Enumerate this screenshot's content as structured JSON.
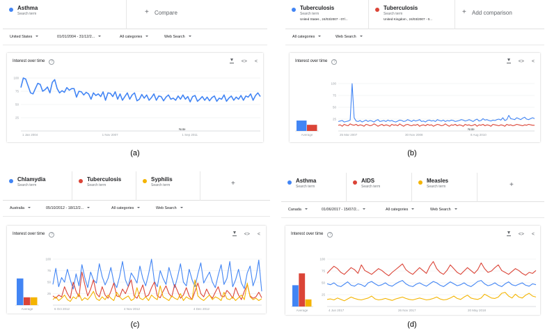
{
  "colors": {
    "blue": "#4285f4",
    "red": "#db4437",
    "yellow": "#f4b400",
    "grid": "#e8eaed",
    "axis": "#9aa0a6",
    "panel_border": "#e0e0e0"
  },
  "labels": {
    "search_term": "Search term",
    "compare": "Compare",
    "add_comparison": "Add comparison",
    "all_categories": "All categories",
    "web_search": "Web Search",
    "interest_over_time": "Interest over time",
    "average": "Average",
    "note": "Note",
    "help_glyph": "?",
    "plus_glyph": "+"
  },
  "icons": [
    "download-icon",
    "embed-icon",
    "share-icon",
    "help-icon",
    "dropdown-caret-icon",
    "plus-icon"
  ],
  "panels": [
    {
      "caption": "(a)",
      "terms": [
        {
          "name": "Asthma",
          "color": "#4285f4",
          "detail": ""
        }
      ],
      "add_label_key": "compare",
      "filters": {
        "region": "United States",
        "date": "01/01/2004 - 31/12/2..."
      }
    },
    {
      "caption": "(b)",
      "terms": [
        {
          "name": "Tuberculosis",
          "color": "#4285f4",
          "detail": "United States , 24/03/2007 - 07/..."
        },
        {
          "name": "Tuberculosis",
          "color": "#db4437",
          "detail": "United Kingdom , 24/03/2007 - 0..."
        }
      ],
      "add_label_key": "add_comparison",
      "filters": {
        "region": "",
        "date": ""
      }
    },
    {
      "caption": "(c)",
      "terms": [
        {
          "name": "Chlamydia",
          "color": "#4285f4",
          "detail": ""
        },
        {
          "name": "Tuberculosis",
          "color": "#db4437",
          "detail": ""
        },
        {
          "name": "Syphilis",
          "color": "#f4b400",
          "detail": ""
        }
      ],
      "add_label_key": "",
      "filters": {
        "region": "Australia",
        "date": "05/10/2012 - 18/12/2..."
      }
    },
    {
      "caption": "(d)",
      "terms": [
        {
          "name": "Asthma",
          "color": "#4285f4",
          "detail": ""
        },
        {
          "name": "AIDS",
          "color": "#db4437",
          "detail": ""
        },
        {
          "name": "Measles",
          "color": "#f4b400",
          "detail": ""
        }
      ],
      "add_label_key": "",
      "filters": {
        "region": "Canada",
        "date": "01/06/2017 - 15/07/2..."
      }
    }
  ],
  "chart_data": [
    {
      "type": "line",
      "ylim": [
        0,
        100
      ],
      "yticks": [
        "100",
        "75",
        "50",
        "25"
      ],
      "x_ticks": [
        "1 Jan 2004",
        "1 Nov 2007",
        "1 Sep 2011"
      ],
      "has_average": false,
      "annotation": "Note",
      "series": [
        {
          "color": "#4285f4",
          "values": [
            82,
            100,
            98,
            85,
            72,
            70,
            80,
            90,
            88,
            75,
            78,
            83,
            72,
            92,
            97,
            80,
            72,
            76,
            73,
            82,
            77,
            80,
            80,
            64,
            75,
            74,
            68,
            73,
            70,
            60,
            72,
            67,
            70,
            65,
            74,
            58,
            72,
            71,
            65,
            74,
            60,
            70,
            58,
            65,
            72,
            60,
            68,
            72,
            57,
            60,
            69,
            62,
            68,
            58,
            63,
            70,
            58,
            66,
            65,
            57,
            64,
            68,
            60,
            62,
            58,
            66,
            60,
            68,
            60,
            65,
            55,
            65,
            67,
            56,
            60,
            65,
            58,
            64,
            57,
            63,
            66,
            56,
            62,
            60,
            68,
            56,
            62,
            66,
            58,
            64,
            60,
            67,
            58,
            66,
            64,
            70,
            58,
            67,
            72,
            65
          ]
        }
      ]
    },
    {
      "type": "line",
      "ylim": [
        0,
        100
      ],
      "yticks": [
        "100",
        "75",
        "50",
        "25"
      ],
      "x_ticks": [
        "25 Mar 2007",
        "30 Nov 2008",
        "8 Aug 2010"
      ],
      "has_average": true,
      "averages": [
        22,
        13
      ],
      "annotation": "Note",
      "series": [
        {
          "color": "#4285f4",
          "values": [
            20,
            21,
            22,
            19,
            20,
            21,
            23,
            100,
            28,
            21,
            20,
            22,
            19,
            21,
            23,
            20,
            22,
            21,
            19,
            22,
            24,
            20,
            21,
            22,
            20,
            23,
            21,
            22,
            20,
            19,
            21,
            23,
            22,
            20,
            21,
            24,
            22,
            20,
            23,
            21,
            22,
            24,
            20,
            21,
            19,
            22,
            23,
            21,
            22,
            20,
            24,
            22,
            21,
            23,
            20,
            22,
            21,
            23,
            22,
            20,
            21,
            22,
            24,
            23,
            21,
            22,
            24,
            22,
            20,
            23,
            25,
            21,
            22,
            26,
            23,
            24,
            22,
            21,
            23,
            22,
            24,
            25,
            23,
            28,
            22,
            24,
            33,
            26,
            25,
            24,
            28,
            26,
            24,
            27,
            29,
            25,
            24,
            26,
            28,
            26
          ]
        },
        {
          "color": "#db4437",
          "values": [
            12,
            13,
            10,
            14,
            12,
            11,
            15,
            13,
            12,
            14,
            11,
            13,
            12,
            10,
            14,
            13,
            11,
            12,
            15,
            13,
            10,
            12,
            14,
            11,
            13,
            12,
            10,
            14,
            12,
            13,
            11,
            15,
            12,
            10,
            13,
            14,
            12,
            11,
            13,
            12,
            14,
            10,
            12,
            13,
            11,
            14,
            12,
            13,
            10,
            12,
            14,
            13,
            11,
            12,
            15,
            12,
            10,
            13,
            12,
            14,
            11,
            13,
            12,
            10,
            14,
            12,
            13,
            11,
            12,
            14,
            10,
            13,
            12,
            14,
            11,
            13,
            12,
            10,
            14,
            13,
            12,
            11,
            13,
            12,
            10,
            14,
            12,
            13,
            11,
            12,
            14,
            13,
            12,
            11,
            13,
            12,
            14,
            13,
            12,
            12
          ]
        }
      ]
    },
    {
      "type": "line",
      "ylim": [
        0,
        100
      ],
      "yticks": [
        "100",
        "75",
        "50",
        "25"
      ],
      "x_ticks": [
        "6 Oct 2012",
        "4 Nov 2012",
        "4 Dec 2012"
      ],
      "has_average": true,
      "averages": [
        58,
        17,
        17
      ],
      "annotation": "",
      "series": [
        {
          "color": "#4285f4",
          "values": [
            45,
            80,
            40,
            60,
            50,
            78,
            55,
            35,
            68,
            42,
            88,
            60,
            38,
            72,
            55,
            48,
            90,
            62,
            44,
            58,
            82,
            50,
            38,
            62,
            95,
            55,
            40,
            70,
            60,
            48,
            85,
            58,
            42,
            68,
            100,
            52,
            40,
            75,
            58,
            45,
            82,
            60,
            38,
            62,
            90,
            50,
            42,
            78,
            55,
            40,
            68,
            92,
            48,
            60,
            72,
            50,
            38,
            65,
            88,
            45,
            58,
            95,
            40,
            55,
            78,
            48,
            36,
            70,
            85,
            42,
            60,
            98,
            30
          ]
        },
        {
          "color": "#db4437",
          "values": [
            20,
            15,
            22,
            18,
            40,
            25,
            15,
            50,
            30,
            18,
            72,
            45,
            20,
            35,
            55,
            25,
            18,
            40,
            22,
            15,
            30,
            48,
            20,
            18,
            35,
            25,
            40,
            55,
            20,
            15,
            28,
            44,
            18,
            22,
            38,
            50,
            20,
            16,
            30,
            42,
            25,
            18,
            45,
            30,
            15,
            22,
            38,
            20,
            12,
            30,
            48,
            25,
            18,
            35,
            22,
            15,
            28,
            40,
            20,
            18,
            32,
            25,
            15,
            38,
            22,
            12,
            30,
            45,
            20,
            15,
            18,
            28,
            16
          ]
        },
        {
          "color": "#f4b400",
          "values": [
            12,
            18,
            10,
            15,
            22,
            12,
            8,
            18,
            14,
            25,
            10,
            16,
            12,
            20,
            30,
            14,
            10,
            18,
            12,
            22,
            15,
            10,
            28,
            18,
            12,
            16,
            20,
            10,
            14,
            38,
            15,
            12,
            18,
            10,
            22,
            16,
            12,
            42,
            18,
            14,
            10,
            20,
            15,
            12,
            25,
            10,
            18,
            14,
            12,
            55,
            20,
            14,
            10,
            16,
            22,
            12,
            18,
            15,
            10,
            28,
            14,
            12,
            18,
            10,
            16,
            22,
            12,
            48,
            18,
            12,
            15,
            10,
            14
          ]
        }
      ]
    },
    {
      "type": "line",
      "ylim": [
        0,
        100
      ],
      "yticks": [
        "100",
        "75",
        "50",
        "25"
      ],
      "x_ticks": [
        "4 Jun 2017",
        "26 Nov 2017",
        "20 May 2018"
      ],
      "has_average": true,
      "averages": [
        45,
        70,
        15
      ],
      "annotation": "",
      "series": [
        {
          "color": "#4285f4",
          "values": [
            48,
            46,
            50,
            44,
            42,
            47,
            52,
            45,
            43,
            48,
            46,
            42,
            50,
            53,
            48,
            44,
            46,
            50,
            45,
            43,
            48,
            52,
            55,
            48,
            44,
            42,
            47,
            50,
            46,
            43,
            48,
            53,
            50,
            45,
            42,
            47,
            52,
            48,
            44,
            46,
            50,
            45,
            42,
            47,
            53,
            55,
            48,
            44,
            46,
            50,
            45,
            42,
            48,
            52,
            46,
            44,
            47,
            50,
            45,
            43,
            48,
            46
          ]
        },
        {
          "color": "#db4437",
          "values": [
            70,
            78,
            85,
            80,
            72,
            68,
            75,
            82,
            78,
            70,
            88,
            76,
            72,
            68,
            74,
            80,
            76,
            70,
            65,
            72,
            78,
            84,
            90,
            78,
            72,
            68,
            75,
            82,
            76,
            70,
            85,
            95,
            80,
            72,
            68,
            76,
            88,
            80,
            72,
            68,
            75,
            82,
            76,
            70,
            78,
            92,
            80,
            72,
            75,
            82,
            88,
            76,
            72,
            68,
            74,
            80,
            76,
            70,
            66,
            72,
            70,
            76
          ]
        },
        {
          "color": "#f4b400",
          "values": [
            15,
            16,
            14,
            18,
            15,
            12,
            16,
            20,
            17,
            15,
            14,
            16,
            18,
            22,
            16,
            14,
            15,
            17,
            15,
            13,
            16,
            18,
            20,
            17,
            15,
            14,
            16,
            18,
            16,
            14,
            15,
            17,
            20,
            16,
            14,
            15,
            18,
            22,
            17,
            15,
            20,
            24,
            18,
            16,
            15,
            18,
            26,
            22,
            18,
            17,
            20,
            28,
            30,
            22,
            18,
            26,
            20,
            18,
            24,
            28,
            22,
            20
          ]
        }
      ]
    }
  ]
}
